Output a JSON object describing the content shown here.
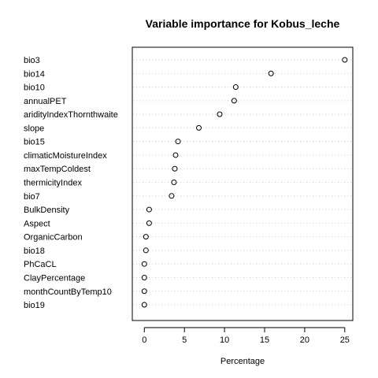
{
  "chart_data": {
    "type": "scatter",
    "title": "Variable importance for Kobus_leche",
    "xlabel": "Percentage",
    "ylabel": "",
    "xlim": [
      -1.5,
      26
    ],
    "xticks": [
      0,
      5,
      10,
      15,
      20,
      25
    ],
    "grid": "dotted horizontal",
    "categories": [
      "bio3",
      "bio14",
      "bio10",
      "annualPET",
      "aridityIndexThornthwaite",
      "slope",
      "bio15",
      "climaticMoistureIndex",
      "maxTempColdest",
      "thermicityIndex",
      "bio7",
      "BulkDensity",
      "Aspect",
      "OrganicCarbon",
      "bio18",
      "PhCaCL",
      "ClayPercentage",
      "monthCountByTemp10",
      "bio19"
    ],
    "values": [
      25.0,
      15.8,
      11.4,
      11.2,
      9.4,
      6.8,
      4.2,
      3.9,
      3.8,
      3.7,
      3.4,
      0.6,
      0.6,
      0.2,
      0.2,
      0.0,
      0.0,
      0.0,
      0.0
    ]
  }
}
